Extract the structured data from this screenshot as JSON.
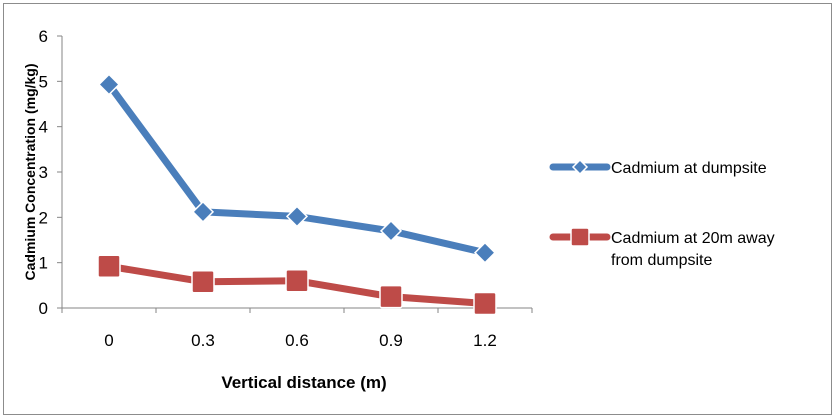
{
  "chart_data": {
    "type": "line",
    "title": "",
    "xlabel": "Vertical distance (m)",
    "ylabel": "Cadmium Concentration (mg/kg)",
    "x": [
      "0",
      "0.3",
      "0.6",
      "0.9",
      "1.2"
    ],
    "ylim": [
      0,
      6
    ],
    "yticks": [
      "0",
      "1",
      "2",
      "3",
      "4",
      "5",
      "6"
    ],
    "grid": false,
    "legend_position": "right",
    "series": [
      {
        "name": "Cadmium at dumpsite",
        "name_lines": [
          "Cadmium at dumpsite"
        ],
        "values": [
          4.93,
          2.12,
          2.02,
          1.7,
          1.22
        ],
        "color": "#4a7ebb",
        "marker": "diamond"
      },
      {
        "name": "Cadmium at 20m away from dumpsite",
        "name_lines": [
          "Cadmium at 20m away",
          "from dumpsite"
        ],
        "values": [
          0.92,
          0.58,
          0.6,
          0.25,
          0.1
        ],
        "color": "#be4b48",
        "marker": "square"
      }
    ]
  }
}
